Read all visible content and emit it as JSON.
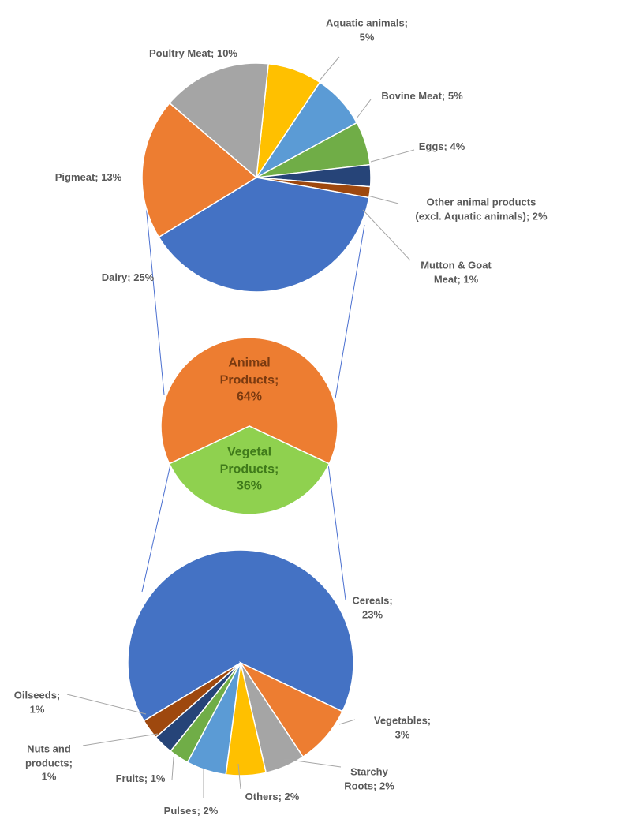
{
  "chart_data": [
    {
      "type": "pie",
      "values": [
        5,
        5,
        4,
        2,
        1,
        25,
        13,
        10
      ],
      "value_labels": [
        "Aquatic animals;\n5%",
        "Bovine Meat; 5%",
        "Eggs; 4%",
        "Other animal products\n(excl. Aquatic animals); 2%",
        "Mutton & Goat\nMeat; 1%",
        "Dairy; 25%",
        "Pigmeat; 13%",
        "Poultry Meat; 10%"
      ],
      "colors": [
        "#ffc000",
        "#5b9bd5",
        "#70ad47",
        "#264478",
        "#9e480e",
        "#4472c4",
        "#ed7d31",
        "#a5a5a5"
      ]
    },
    {
      "type": "pie",
      "values": [
        36,
        64
      ],
      "value_labels": [
        "Vegetal\nProducts;\n36%",
        "Animal\nProducts;\n64%"
      ],
      "colors": [
        "#8fd14f",
        "#ed7d31"
      ]
    },
    {
      "type": "pie",
      "values": [
        23,
        3,
        2,
        2,
        2,
        1,
        1,
        1
      ],
      "value_labels": [
        "Cereals;\n23%",
        "Vegetables;\n3%",
        "Starchy\nRoots; 2%",
        "Others; 2%",
        "Pulses; 2%",
        "Fruits; 1%",
        "Nuts and\nproducts;\n1%",
        "Oilseeds;\n1%"
      ],
      "colors": [
        "#4472c4",
        "#ed7d31",
        "#a5a5a5",
        "#ffc000",
        "#5b9bd5",
        "#70ad47",
        "#264478",
        "#9e480e"
      ]
    }
  ]
}
